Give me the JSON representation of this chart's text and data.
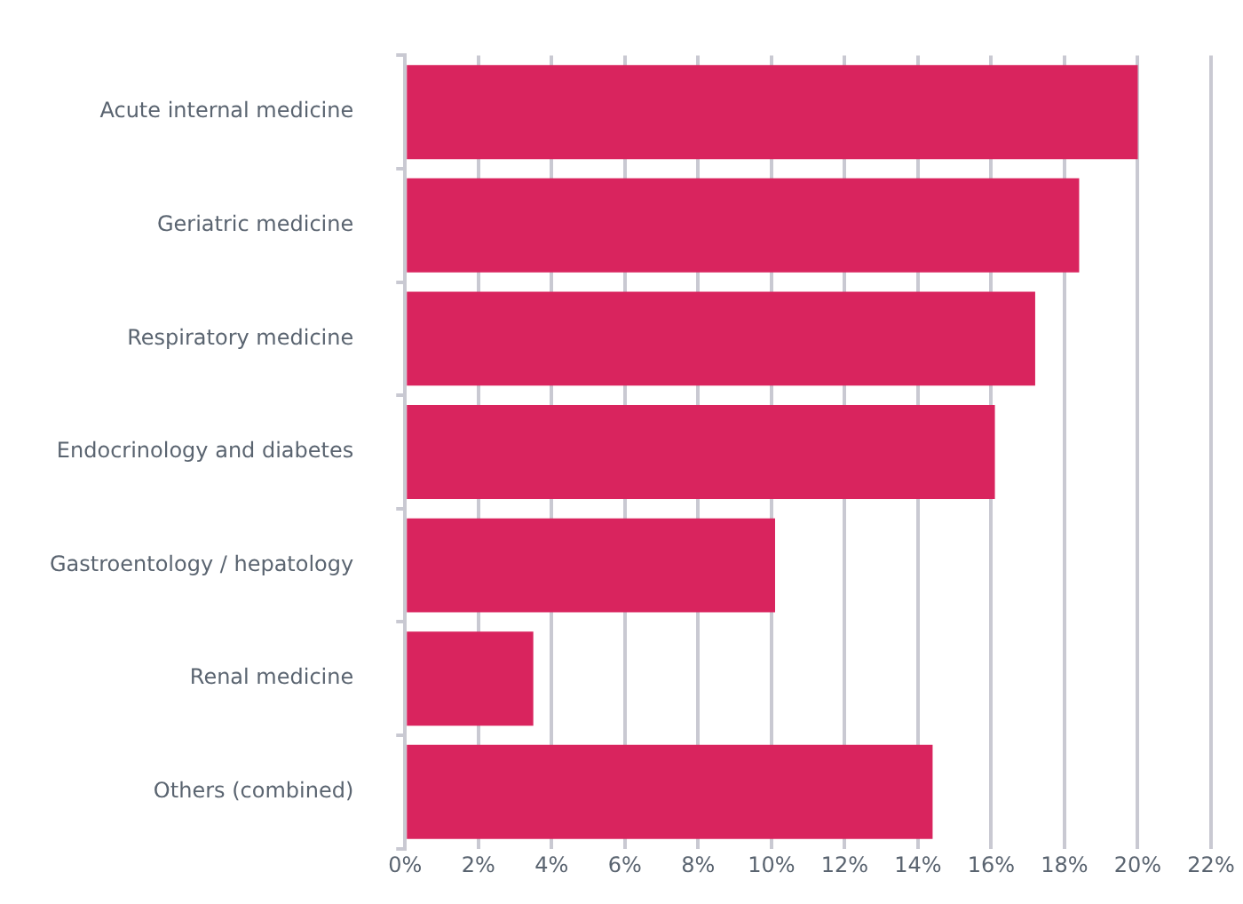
{
  "chart_data": {
    "type": "bar",
    "orientation": "horizontal",
    "categories": [
      "Acute internal medicine",
      "Geriatric medicine",
      "Respiratory medicine",
      "Endocrinology and diabetes",
      "Gastroentology / hepatology",
      "Renal medicine",
      "Others (combined)"
    ],
    "values": [
      20.0,
      18.4,
      17.2,
      16.1,
      10.1,
      3.5,
      14.4
    ],
    "color": "#d9245e",
    "xlim": [
      0,
      22
    ],
    "xticks": [
      {
        "value": 0,
        "label": "0%"
      },
      {
        "value": 2,
        "label": "2%"
      },
      {
        "value": 4,
        "label": "4%"
      },
      {
        "value": 6,
        "label": "6%"
      },
      {
        "value": 8,
        "label": "8%"
      },
      {
        "value": 10,
        "label": "10%"
      },
      {
        "value": 12,
        "label": "12%"
      },
      {
        "value": 14,
        "label": "14%"
      },
      {
        "value": 16,
        "label": "16%"
      },
      {
        "value": 18,
        "label": "18%"
      },
      {
        "value": 20,
        "label": "20%"
      },
      {
        "value": 22,
        "label": "22%"
      }
    ],
    "grid": "x",
    "legend": false
  }
}
